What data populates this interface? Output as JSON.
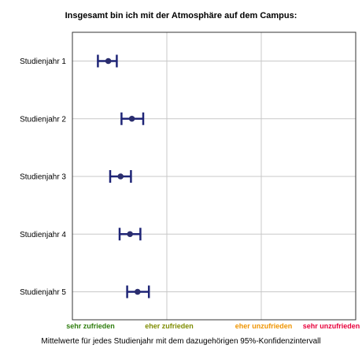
{
  "chart_data": {
    "type": "scatter",
    "title": "Insgesamt bin ich mit der Atmosphäre auf dem Campus:",
    "xlabel": "Mittelwerte für jedes Studienjahr mit dem dazugehörigen 95%-Konfidenzintervall",
    "categories": [
      "Studienjahr 1",
      "Studienjahr 2",
      "Studienjahr 3",
      "Studienjahr 4",
      "Studienjahr 5"
    ],
    "values": [
      1.38,
      1.63,
      1.51,
      1.61,
      1.69
    ],
    "ci_low": [
      1.27,
      1.52,
      1.4,
      1.5,
      1.58
    ],
    "ci_high": [
      1.47,
      1.75,
      1.62,
      1.72,
      1.81
    ],
    "xlim": [
      1,
      4
    ],
    "x_ticks": [
      {
        "value": 1,
        "label": "sehr zufrieden",
        "color": "#2e7d0e"
      },
      {
        "value": 2,
        "label": "eher zufrieden",
        "color": "#7e8c00"
      },
      {
        "value": 3,
        "label": "eher unzufrieden",
        "color": "#ef9400"
      },
      {
        "value": 4,
        "label": "sehr unzufrieden",
        "color": "#e8003b"
      }
    ],
    "grid": true,
    "marker_color": "#2a2d6e",
    "errorbar_color": "#1f2577"
  }
}
